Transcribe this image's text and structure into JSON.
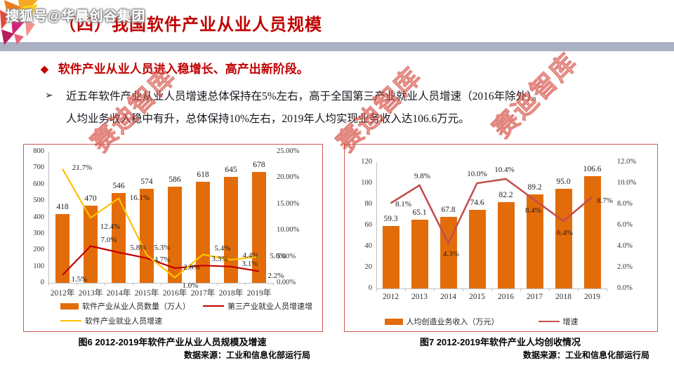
{
  "watermark_top": "搜狐号@华晨创谷集团",
  "diagonal_watermark": "赛迪智库",
  "header": {
    "title": "（四）我国软件产业从业人员规模"
  },
  "subtitle": {
    "bullet": "◆",
    "text": "软件产业从业人员进入稳增长、高产出新阶段。"
  },
  "bullet": {
    "marker": "➢",
    "line1": "近五年软件产业从业人员增速总体保持在5%左右，高于全国第三产业就业人员增速（2016年除外）。",
    "line2": "人均业务收入稳中有升，总体保持10%左右，2019年人均实现业务收入达106.6万元。"
  },
  "colors": {
    "title_red": "#c00000",
    "bar_orange": "#e36c0a",
    "left_line_red": "#c00000",
    "left_line_yellow": "#ffc000",
    "right_line_red": "#c0504d",
    "box_border": "#cf5953",
    "header_bar_gray": "#a9b1c2"
  },
  "chart_data": [
    {
      "type": "bar+line",
      "caption": "图6  2012-2019年软件产业从业人员规模及增速",
      "source": "数据来源：工业和信息化部运行局",
      "categories": [
        "2012年",
        "2013年",
        "2014年",
        "2015年",
        "2016年",
        "2017年",
        "2018年",
        "2019年"
      ],
      "left_axis": {
        "min": 0,
        "max": 800,
        "ticks": [
          "800",
          "700",
          "600",
          "500",
          "400",
          "300",
          "200",
          "100",
          "0"
        ]
      },
      "right_axis": {
        "min": 0,
        "max": 25,
        "ticks": [
          "25.00%",
          "20.00%",
          "15.00%",
          "10.00%",
          "5.00%",
          "0.00%"
        ]
      },
      "legend_position": "bottom",
      "grid": false,
      "series": [
        {
          "name": "软件产业从业人员数量（万人）",
          "kind": "bar",
          "axis": "left",
          "color": "#e36c0a",
          "values": [
            418,
            470,
            546,
            574,
            586,
            618,
            645,
            678
          ],
          "labels": [
            "418",
            "470",
            "546",
            "574",
            "586",
            "618",
            "645",
            "678"
          ]
        },
        {
          "name": "第三产业就业人员增速增",
          "kind": "line",
          "axis": "right",
          "color": "#c00000",
          "values": [
            1.5,
            7.0,
            5.8,
            4.7,
            2.8,
            3.3,
            3.1,
            2.2
          ],
          "labels": [
            "1.5%",
            "7.0%",
            "5.8%",
            "4.7%",
            "2.8%",
            "3.3%",
            "3.1%",
            "2.2%"
          ]
        },
        {
          "name": "软件产业就业人员增速",
          "kind": "line",
          "axis": "right",
          "color": "#ffc000",
          "values": [
            21.7,
            12.4,
            16.1,
            5.3,
            1.0,
            5.4,
            4.4,
            5.0
          ],
          "labels": [
            "21.7%",
            "12.4%",
            "16.1%",
            "5.3%",
            "1.0%",
            "5.4%",
            "4.4%",
            "5.0%"
          ]
        }
      ]
    },
    {
      "type": "bar+line",
      "caption": "图7  2012-2019年软件产业人均创收情况",
      "source": "数据来源：工业和信息化部运行局",
      "categories": [
        "2012",
        "2013",
        "2014",
        "2015",
        "2016",
        "2017",
        "2018",
        "2019"
      ],
      "left_axis": {
        "min": 0,
        "max": 120,
        "ticks": [
          "120",
          "100",
          "80",
          "60",
          "40",
          "20",
          "0"
        ]
      },
      "right_axis": {
        "min": 0,
        "max": 12,
        "ticks": [
          "12.0%",
          "10.0%",
          "8.0%",
          "6.0%",
          "4.0%",
          "2.0%",
          "0.0%"
        ]
      },
      "legend_position": "bottom",
      "grid": false,
      "series": [
        {
          "name": "人均创造业务收入（万元）",
          "kind": "bar",
          "axis": "left",
          "color": "#e36c0a",
          "values": [
            59.3,
            65.1,
            67.8,
            74.6,
            82.2,
            89.2,
            95.0,
            106.6
          ],
          "labels": [
            "59.3",
            "65.1",
            "67.8",
            "74.6",
            "82.2",
            "89.2",
            "95.0",
            "106.6"
          ]
        },
        {
          "name": "增速",
          "kind": "line",
          "axis": "right",
          "color": "#c0504d",
          "values": [
            8.1,
            9.8,
            4.3,
            10.0,
            10.4,
            8.4,
            6.4,
            8.7
          ],
          "labels": [
            "8.1%",
            "9.8%",
            "4.3%",
            "10.0%",
            "10.4%",
            "8.4%",
            "6.4%",
            "8.7%"
          ]
        }
      ]
    }
  ]
}
